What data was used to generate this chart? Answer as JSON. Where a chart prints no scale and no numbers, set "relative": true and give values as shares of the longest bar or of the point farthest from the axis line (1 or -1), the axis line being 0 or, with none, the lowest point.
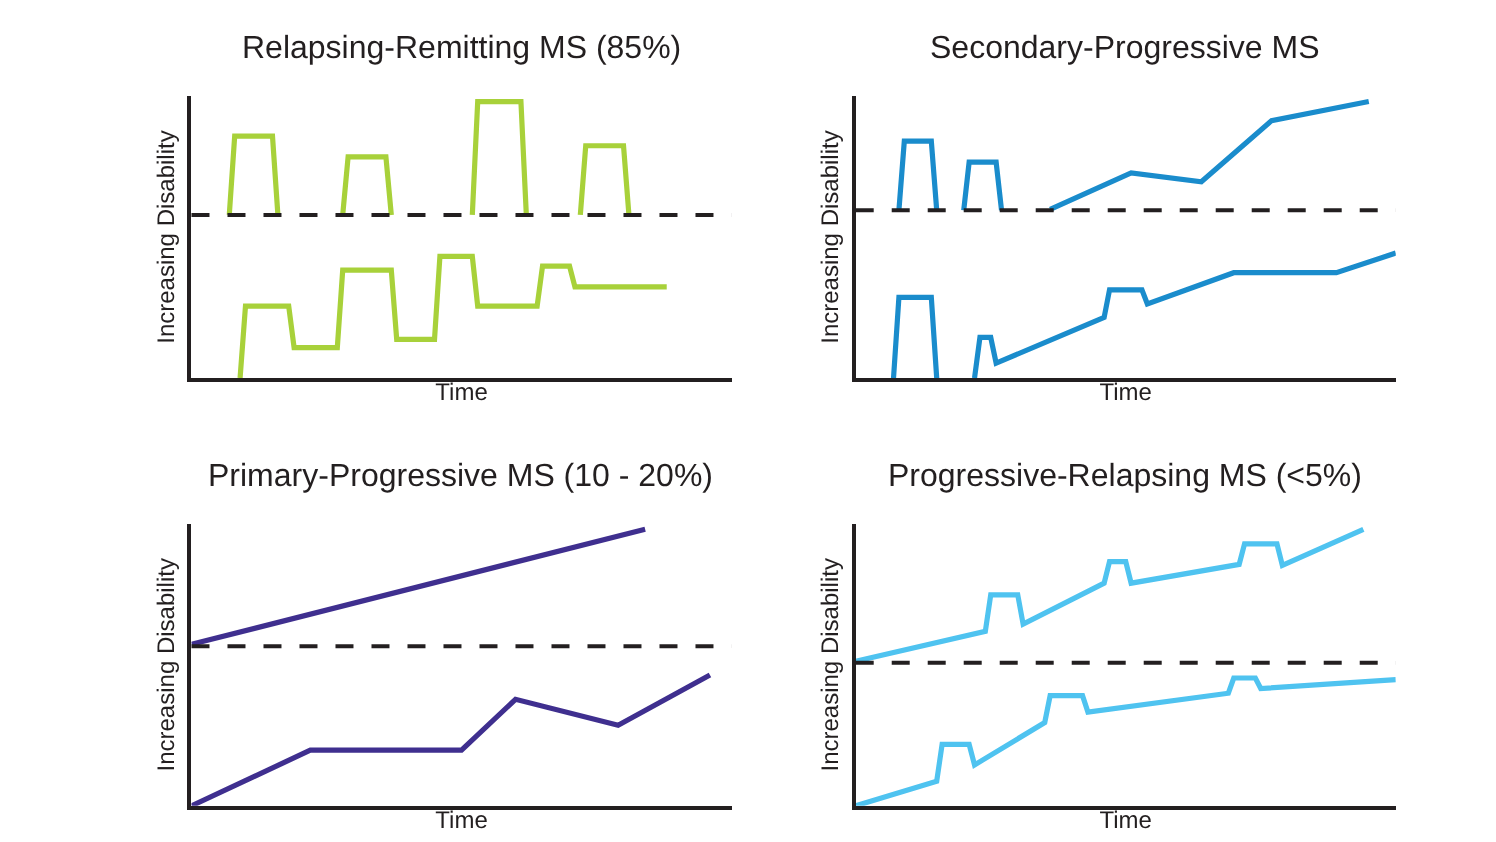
{
  "chart_data": [
    {
      "type": "line",
      "title": "Relapsing-Remitting MS (85%)",
      "xlabel": "Time",
      "ylabel": "Increasing Disability",
      "relative": true,
      "tick_labels": false,
      "line_style": "solid",
      "categories": [
        null,
        null,
        null,
        null,
        null,
        null,
        null,
        null,
        null,
        null,
        null,
        null,
        null,
        null,
        null,
        null,
        null,
        null,
        null,
        null,
        null,
        null,
        null,
        null,
        null,
        null,
        null,
        null,
        null,
        null,
        null,
        null,
        null,
        null,
        null,
        null,
        null,
        null,
        null,
        null,
        null,
        null,
        null,
        null,
        null,
        null,
        null,
        null,
        null,
        null,
        null,
        null,
        null,
        null,
        null,
        null,
        null,
        null,
        null,
        null,
        null,
        null,
        null,
        null,
        null,
        null,
        null,
        null,
        null,
        null,
        null,
        null,
        null,
        null,
        null,
        null,
        null,
        null,
        null,
        null,
        null,
        null,
        null,
        null,
        null,
        null,
        null,
        null,
        null,
        null,
        null,
        null,
        null,
        null,
        null,
        null,
        null,
        null,
        null,
        null,
        null
      ],
      "ref_lines": [
        {
          "axis": "y",
          "value": 0.59,
          "color": "#231f20",
          "line_style": "dashed"
        }
      ],
      "series": [
        {
          "color": "#a8d13a",
          "values": [
            null,
            null,
            null,
            null,
            null,
            null,
            null,
            0.59,
            0.875,
            null,
            null,
            null,
            null,
            null,
            null,
            0.875,
            0.59,
            null,
            null,
            null,
            null,
            null,
            null,
            null,
            null,
            null,
            null,
            null,
            null,
            null,
            null,
            null,
            null,
            null,
            null,
            null,
            null,
            null,
            null,
            null,
            null,
            null,
            null,
            null,
            null,
            null,
            null,
            null,
            null,
            null,
            null,
            null,
            null,
            null,
            null,
            null,
            null,
            null,
            null,
            null,
            null,
            null,
            null,
            null,
            null,
            null,
            null,
            null,
            null,
            null,
            null,
            null,
            null,
            null,
            null,
            null,
            null,
            null,
            null,
            null,
            null,
            null,
            null,
            null,
            null,
            null,
            null,
            null,
            null,
            null,
            null,
            null,
            null,
            null,
            null,
            null,
            null,
            null,
            null,
            null,
            null
          ]
        },
        {
          "color": "#a8d13a",
          "values": [
            null,
            null,
            null,
            null,
            null,
            null,
            null,
            null,
            null,
            null,
            null,
            null,
            null,
            null,
            null,
            null,
            null,
            null,
            null,
            null,
            null,
            null,
            null,
            null,
            null,
            null,
            null,
            null,
            0.59,
            0.8,
            null,
            null,
            null,
            null,
            null,
            null,
            0.8,
            0.59,
            null,
            null,
            null,
            null,
            null,
            null,
            null,
            null,
            null,
            null,
            null,
            null,
            null,
            null,
            null,
            null,
            null,
            null,
            null,
            null,
            null,
            null,
            null,
            null,
            null,
            null,
            null,
            null,
            null,
            null,
            null,
            null,
            null,
            null,
            null,
            null,
            null,
            null,
            null,
            null,
            null,
            null,
            null,
            null,
            null,
            null,
            null,
            null,
            null,
            null,
            null,
            null,
            null,
            null,
            null,
            null,
            null,
            null,
            null,
            null,
            null,
            null,
            null
          ]
        },
        {
          "color": "#a8d13a",
          "values": [
            null,
            null,
            null,
            null,
            null,
            null,
            null,
            null,
            null,
            null,
            null,
            null,
            null,
            null,
            null,
            null,
            null,
            null,
            null,
            null,
            null,
            null,
            null,
            null,
            null,
            null,
            null,
            null,
            null,
            null,
            null,
            null,
            null,
            null,
            null,
            null,
            null,
            null,
            null,
            null,
            null,
            null,
            null,
            null,
            null,
            null,
            null,
            null,
            null,
            null,
            null,
            null,
            0.59,
            1.0,
            null,
            null,
            null,
            null,
            null,
            null,
            null,
            1.0,
            0.59,
            null,
            null,
            null,
            null,
            null,
            null,
            null,
            null,
            null,
            null,
            null,
            null,
            null,
            null,
            null,
            null,
            null,
            null,
            null,
            null,
            null,
            null,
            null,
            null,
            null,
            null,
            null,
            null,
            null,
            null,
            null,
            null,
            null,
            null,
            null,
            null,
            null,
            null
          ]
        },
        {
          "color": "#a8d13a",
          "values": [
            null,
            null,
            null,
            null,
            null,
            null,
            null,
            null,
            null,
            null,
            null,
            null,
            null,
            null,
            null,
            null,
            null,
            null,
            null,
            null,
            null,
            null,
            null,
            null,
            null,
            null,
            null,
            null,
            null,
            null,
            null,
            null,
            null,
            null,
            null,
            null,
            null,
            null,
            null,
            null,
            null,
            null,
            null,
            null,
            null,
            null,
            null,
            null,
            null,
            null,
            null,
            null,
            null,
            null,
            null,
            null,
            null,
            null,
            null,
            null,
            null,
            null,
            null,
            null,
            null,
            null,
            null,
            null,
            null,
            null,
            null,
            null,
            0.59,
            0.84,
            null,
            null,
            null,
            null,
            null,
            null,
            0.84,
            0.59,
            null,
            null,
            null,
            null,
            null,
            null,
            null,
            null,
            null,
            null,
            null,
            null,
            null,
            null,
            null,
            null,
            null,
            null,
            null
          ]
        },
        {
          "color": "#a8d13a",
          "values": [
            null,
            null,
            null,
            null,
            null,
            null,
            null,
            null,
            null,
            0,
            0.26,
            null,
            null,
            null,
            null,
            null,
            null,
            null,
            0.26,
            0.11,
            null,
            null,
            null,
            null,
            null,
            null,
            null,
            0.11,
            0.39,
            null,
            null,
            null,
            null,
            null,
            null,
            null,
            null,
            0.39,
            0.14,
            null,
            null,
            null,
            null,
            null,
            null,
            0.14,
            0.44,
            null,
            null,
            null,
            null,
            null,
            0.44,
            0.26,
            null,
            null,
            null,
            null,
            null,
            null,
            null,
            null,
            null,
            null,
            0.26,
            0.405,
            null,
            null,
            null,
            null,
            0.405,
            0.33,
            null,
            null,
            null,
            null,
            null,
            null,
            null,
            null,
            null,
            null,
            null,
            null,
            null,
            null,
            null,
            null,
            0.33,
            null,
            null,
            null,
            null,
            null,
            null,
            null,
            null,
            null,
            null,
            null,
            null
          ]
        }
      ]
    },
    {
      "type": "line",
      "title": "Secondary-Progressive MS",
      "xlabel": "Time",
      "ylabel": "Increasing Disability",
      "relative": true,
      "tick_labels": false,
      "line_style": "solid",
      "categories": [
        null,
        null,
        null,
        null,
        null,
        null,
        null,
        null,
        null,
        null,
        null,
        null,
        null,
        null,
        null,
        null,
        null,
        null,
        null,
        null,
        null,
        null,
        null,
        null,
        null,
        null,
        null,
        null,
        null,
        null,
        null,
        null,
        null,
        null,
        null,
        null,
        null,
        null,
        null,
        null,
        null,
        null,
        null,
        null,
        null,
        null,
        null,
        null,
        null,
        null,
        null,
        null,
        null,
        null,
        null,
        null,
        null,
        null,
        null,
        null,
        null,
        null,
        null,
        null,
        null,
        null,
        null,
        null,
        null,
        null,
        null,
        null,
        null,
        null,
        null,
        null,
        null,
        null,
        null,
        null,
        null,
        null,
        null,
        null,
        null,
        null,
        null,
        null,
        null,
        null,
        null,
        null,
        null,
        null,
        null,
        null,
        null,
        null,
        null,
        null,
        null
      ],
      "ref_lines": [
        {
          "axis": "y",
          "value": 0.607,
          "color": "#231f20",
          "line_style": "dashed"
        }
      ],
      "series": [
        {
          "color": "#1a8ccc",
          "values": [
            null,
            null,
            null,
            null,
            null,
            null,
            null,
            null,
            0.607,
            0.857,
            null,
            null,
            null,
            null,
            0.857,
            0.607,
            null,
            null,
            null,
            null,
            null,
            null,
            null,
            null,
            null,
            null,
            null,
            null,
            null,
            null,
            null,
            null,
            null,
            null,
            null,
            null,
            null,
            null,
            null,
            null,
            null,
            null,
            null,
            null,
            null,
            null,
            null,
            null,
            null,
            null,
            null,
            null,
            null,
            null,
            null,
            null,
            null,
            null,
            null,
            null,
            null,
            null,
            null,
            null,
            null,
            null,
            null,
            null,
            null,
            null,
            null,
            null,
            null,
            null,
            null,
            null,
            null,
            null,
            null,
            null,
            null,
            null,
            null,
            null,
            null,
            null,
            null,
            null,
            null,
            null,
            null,
            null,
            null,
            null,
            null,
            null,
            null,
            null,
            null,
            null,
            null
          ]
        },
        {
          "color": "#1a8ccc",
          "values": [
            null,
            null,
            null,
            null,
            null,
            null,
            null,
            null,
            null,
            null,
            null,
            null,
            null,
            null,
            null,
            null,
            null,
            null,
            null,
            null,
            0.607,
            0.781,
            null,
            null,
            null,
            null,
            0.781,
            0.607,
            null,
            null,
            null,
            null,
            null,
            null,
            null,
            null,
            null,
            null,
            null,
            null,
            null,
            null,
            null,
            null,
            null,
            null,
            null,
            null,
            null,
            null,
            null,
            null,
            null,
            null,
            null,
            null,
            null,
            null,
            null,
            null,
            null,
            null,
            null,
            null,
            null,
            null,
            null,
            null,
            null,
            null,
            null,
            null,
            null,
            null,
            null,
            null,
            null,
            null,
            null,
            null,
            null,
            null,
            null,
            null,
            null,
            null,
            null,
            null,
            null,
            null,
            null,
            null,
            null,
            null,
            null,
            null,
            null,
            null,
            null,
            null,
            null
          ]
        },
        {
          "color": "#1a8ccc",
          "values": [
            null,
            null,
            null,
            null,
            null,
            null,
            null,
            null,
            null,
            null,
            null,
            null,
            null,
            null,
            null,
            null,
            null,
            null,
            null,
            null,
            null,
            null,
            null,
            null,
            null,
            null,
            null,
            null,
            null,
            null,
            null,
            null,
            null,
            null,
            null,
            null,
            0.61,
            null,
            null,
            null,
            null,
            null,
            null,
            null,
            null,
            null,
            null,
            null,
            null,
            null,
            null,
            0.742,
            null,
            null,
            null,
            null,
            null,
            null,
            null,
            null,
            null,
            null,
            null,
            null,
            0.71,
            null,
            null,
            null,
            null,
            null,
            null,
            null,
            null,
            null,
            null,
            null,
            null,
            0.931,
            null,
            null,
            null,
            null,
            null,
            null,
            null,
            null,
            null,
            null,
            null,
            null,
            null,
            null,
            null,
            null,
            null,
            1.0,
            null,
            null,
            null,
            null,
            null
          ]
        },
        {
          "color": "#1a8ccc",
          "values": [
            null,
            null,
            null,
            null,
            null,
            null,
            null,
            0,
            0.292,
            null,
            null,
            null,
            null,
            null,
            0.292,
            0,
            null,
            null,
            null,
            null,
            null,
            null,
            null,
            null,
            null,
            null,
            null,
            null,
            null,
            null,
            null,
            null,
            null,
            null,
            null,
            null,
            null,
            null,
            null,
            null,
            null,
            null,
            null,
            null,
            null,
            null,
            null,
            null,
            null,
            null,
            null,
            null,
            null,
            null,
            null,
            null,
            null,
            null,
            null,
            null,
            null,
            null,
            null,
            null,
            null,
            null,
            null,
            null,
            null,
            null,
            null,
            null,
            null,
            null,
            null,
            null,
            null,
            null,
            null,
            null,
            null,
            null,
            null,
            null,
            null,
            null,
            null,
            null,
            null,
            null,
            null,
            null,
            null,
            null,
            null,
            null,
            null,
            null,
            null,
            null,
            null
          ]
        },
        {
          "color": "#1a8ccc",
          "values": [
            null,
            null,
            null,
            null,
            null,
            null,
            null,
            null,
            null,
            null,
            null,
            null,
            null,
            null,
            null,
            null,
            null,
            null,
            null,
            null,
            null,
            null,
            0,
            0.147,
            null,
            0.147,
            0.054,
            null,
            null,
            null,
            null,
            null,
            null,
            null,
            null,
            null,
            null,
            null,
            null,
            null,
            null,
            null,
            null,
            null,
            null,
            null,
            0.219,
            0.319,
            null,
            null,
            null,
            null,
            null,
            0.319,
            0.268,
            null,
            null,
            null,
            null,
            null,
            null,
            null,
            null,
            null,
            null,
            null,
            null,
            null,
            null,
            null,
            0.381,
            null,
            null,
            null,
            null,
            null,
            null,
            null,
            null,
            null,
            null,
            null,
            null,
            null,
            null,
            null,
            null,
            null,
            null,
            0.381,
            null,
            null,
            null,
            null,
            null,
            null,
            null,
            null,
            null,
            null,
            0.452
          ]
        }
      ]
    },
    {
      "type": "line",
      "title": "Primary-Progressive MS (10 - 20%)",
      "xlabel": "Time",
      "ylabel": "Increasing Disability",
      "relative": true,
      "tick_labels": false,
      "line_style": "solid",
      "categories": [
        null,
        null,
        null,
        null,
        null,
        null,
        null,
        null,
        null,
        null,
        null,
        null,
        null,
        null,
        null,
        null,
        null,
        null,
        null,
        null,
        null,
        null,
        null,
        null,
        null,
        null,
        null,
        null,
        null,
        null,
        null,
        null,
        null,
        null,
        null,
        null,
        null,
        null,
        null,
        null,
        null,
        null,
        null,
        null,
        null,
        null,
        null,
        null,
        null,
        null,
        null,
        null,
        null,
        null,
        null,
        null,
        null,
        null,
        null,
        null,
        null,
        null,
        null,
        null,
        null,
        null,
        null,
        null,
        null,
        null,
        null,
        null,
        null,
        null,
        null,
        null,
        null,
        null,
        null,
        null,
        null,
        null,
        null,
        null,
        null,
        null,
        null,
        null,
        null,
        null,
        null,
        null,
        null,
        null,
        null,
        null,
        null,
        null,
        null,
        null,
        null
      ],
      "ref_lines": [
        {
          "axis": "y",
          "value": 0.577,
          "color": "#231f20",
          "line_style": "dashed"
        }
      ],
      "series": [
        {
          "color": "#3f2f8f",
          "values": [
            0.584,
            null,
            null,
            null,
            null,
            null,
            null,
            null,
            null,
            null,
            null,
            null,
            null,
            null,
            null,
            null,
            null,
            null,
            null,
            null,
            null,
            null,
            null,
            null,
            null,
            null,
            null,
            null,
            null,
            null,
            null,
            null,
            null,
            null,
            null,
            null,
            null,
            null,
            null,
            null,
            null,
            null,
            null,
            null,
            null,
            null,
            null,
            null,
            null,
            null,
            null,
            null,
            null,
            null,
            null,
            null,
            null,
            null,
            null,
            null,
            null,
            null,
            null,
            null,
            null,
            null,
            null,
            null,
            null,
            null,
            null,
            null,
            null,
            null,
            null,
            null,
            null,
            null,
            null,
            null,
            null,
            null,
            null,
            null,
            1.0,
            null,
            null,
            null,
            null,
            null,
            null,
            null,
            null,
            null,
            null,
            null,
            null,
            null,
            null,
            null,
            null
          ]
        },
        {
          "color": "#3f2f8f",
          "values": [
            0,
            null,
            null,
            null,
            null,
            null,
            null,
            null,
            null,
            null,
            null,
            null,
            null,
            null,
            null,
            null,
            null,
            null,
            null,
            null,
            null,
            null,
            0.201,
            null,
            null,
            null,
            null,
            null,
            null,
            null,
            null,
            null,
            null,
            null,
            null,
            null,
            null,
            null,
            null,
            null,
            null,
            null,
            null,
            null,
            null,
            null,
            null,
            null,
            null,
            null,
            0.201,
            null,
            null,
            null,
            null,
            null,
            null,
            null,
            null,
            null,
            0.385,
            null,
            null,
            null,
            null,
            null,
            null,
            null,
            null,
            null,
            null,
            null,
            null,
            null,
            null,
            null,
            null,
            null,
            null,
            0.291,
            null,
            null,
            null,
            null,
            null,
            null,
            null,
            null,
            null,
            null,
            null,
            null,
            null,
            null,
            null,
            null,
            0.473,
            null,
            null,
            null,
            null
          ]
        }
      ]
    },
    {
      "type": "line",
      "title": "Progressive-Relapsing MS (<5%)",
      "xlabel": "Time",
      "ylabel": "Increasing Disability",
      "relative": true,
      "tick_labels": false,
      "line_style": "solid",
      "categories": [
        null,
        null,
        null,
        null,
        null,
        null,
        null,
        null,
        null,
        null,
        null,
        null,
        null,
        null,
        null,
        null,
        null,
        null,
        null,
        null,
        null,
        null,
        null,
        null,
        null,
        null,
        null,
        null,
        null,
        null,
        null,
        null,
        null,
        null,
        null,
        null,
        null,
        null,
        null,
        null,
        null,
        null,
        null,
        null,
        null,
        null,
        null,
        null,
        null,
        null,
        null,
        null,
        null,
        null,
        null,
        null,
        null,
        null,
        null,
        null,
        null,
        null,
        null,
        null,
        null,
        null,
        null,
        null,
        null,
        null,
        null,
        null,
        null,
        null,
        null,
        null,
        null,
        null,
        null,
        null,
        null,
        null,
        null,
        null,
        null,
        null,
        null,
        null,
        null,
        null,
        null,
        null,
        null,
        null,
        null,
        null,
        null,
        null,
        null,
        null,
        null
      ],
      "ref_lines": [
        {
          "axis": "y",
          "value": 0.517,
          "color": "#231f20",
          "line_style": "dashed"
        }
      ],
      "series": [
        {
          "color": "#4fc3f0",
          "values": [
            0.523,
            null,
            null,
            null,
            null,
            null,
            null,
            null,
            null,
            null,
            null,
            null,
            null,
            null,
            null,
            null,
            null,
            null,
            null,
            null,
            null,
            null,
            null,
            null,
            0.631,
            0.763,
            null,
            null,
            null,
            null,
            0.763,
            0.657,
            null,
            null,
            null,
            null,
            null,
            null,
            null,
            null,
            null,
            null,
            null,
            null,
            null,
            null,
            0.805,
            0.883,
            null,
            null,
            0.883,
            0.805,
            null,
            null,
            null,
            null,
            null,
            null,
            null,
            null,
            null,
            null,
            null,
            null,
            null,
            null,
            null,
            null,
            null,
            null,
            null,
            0.873,
            0.947,
            null,
            null,
            null,
            null,
            null,
            0.947,
            0.869,
            null,
            null,
            null,
            null,
            null,
            null,
            null,
            null,
            null,
            null,
            null,
            null,
            null,
            null,
            1.0,
            null,
            null,
            null,
            null,
            null,
            null
          ]
        },
        {
          "color": "#4fc3f0",
          "values": [
            0,
            null,
            null,
            null,
            null,
            null,
            null,
            null,
            null,
            null,
            null,
            null,
            null,
            null,
            null,
            0.089,
            0.222,
            null,
            null,
            null,
            null,
            0.222,
            0.148,
            null,
            null,
            null,
            null,
            null,
            null,
            null,
            null,
            null,
            null,
            null,
            null,
            0.301,
            0.398,
            null,
            null,
            null,
            null,
            null,
            0.398,
            0.339,
            null,
            null,
            null,
            null,
            null,
            null,
            null,
            null,
            null,
            null,
            null,
            null,
            null,
            null,
            null,
            null,
            null,
            null,
            null,
            null,
            null,
            null,
            null,
            null,
            null,
            0.407,
            0.462,
            null,
            null,
            null,
            0.462,
            0.424,
            null,
            null,
            null,
            null,
            null,
            null,
            null,
            null,
            null,
            null,
            null,
            null,
            null,
            null,
            null,
            null,
            null,
            null,
            null,
            null,
            null,
            null,
            null,
            null,
            0.456
          ]
        }
      ]
    }
  ]
}
